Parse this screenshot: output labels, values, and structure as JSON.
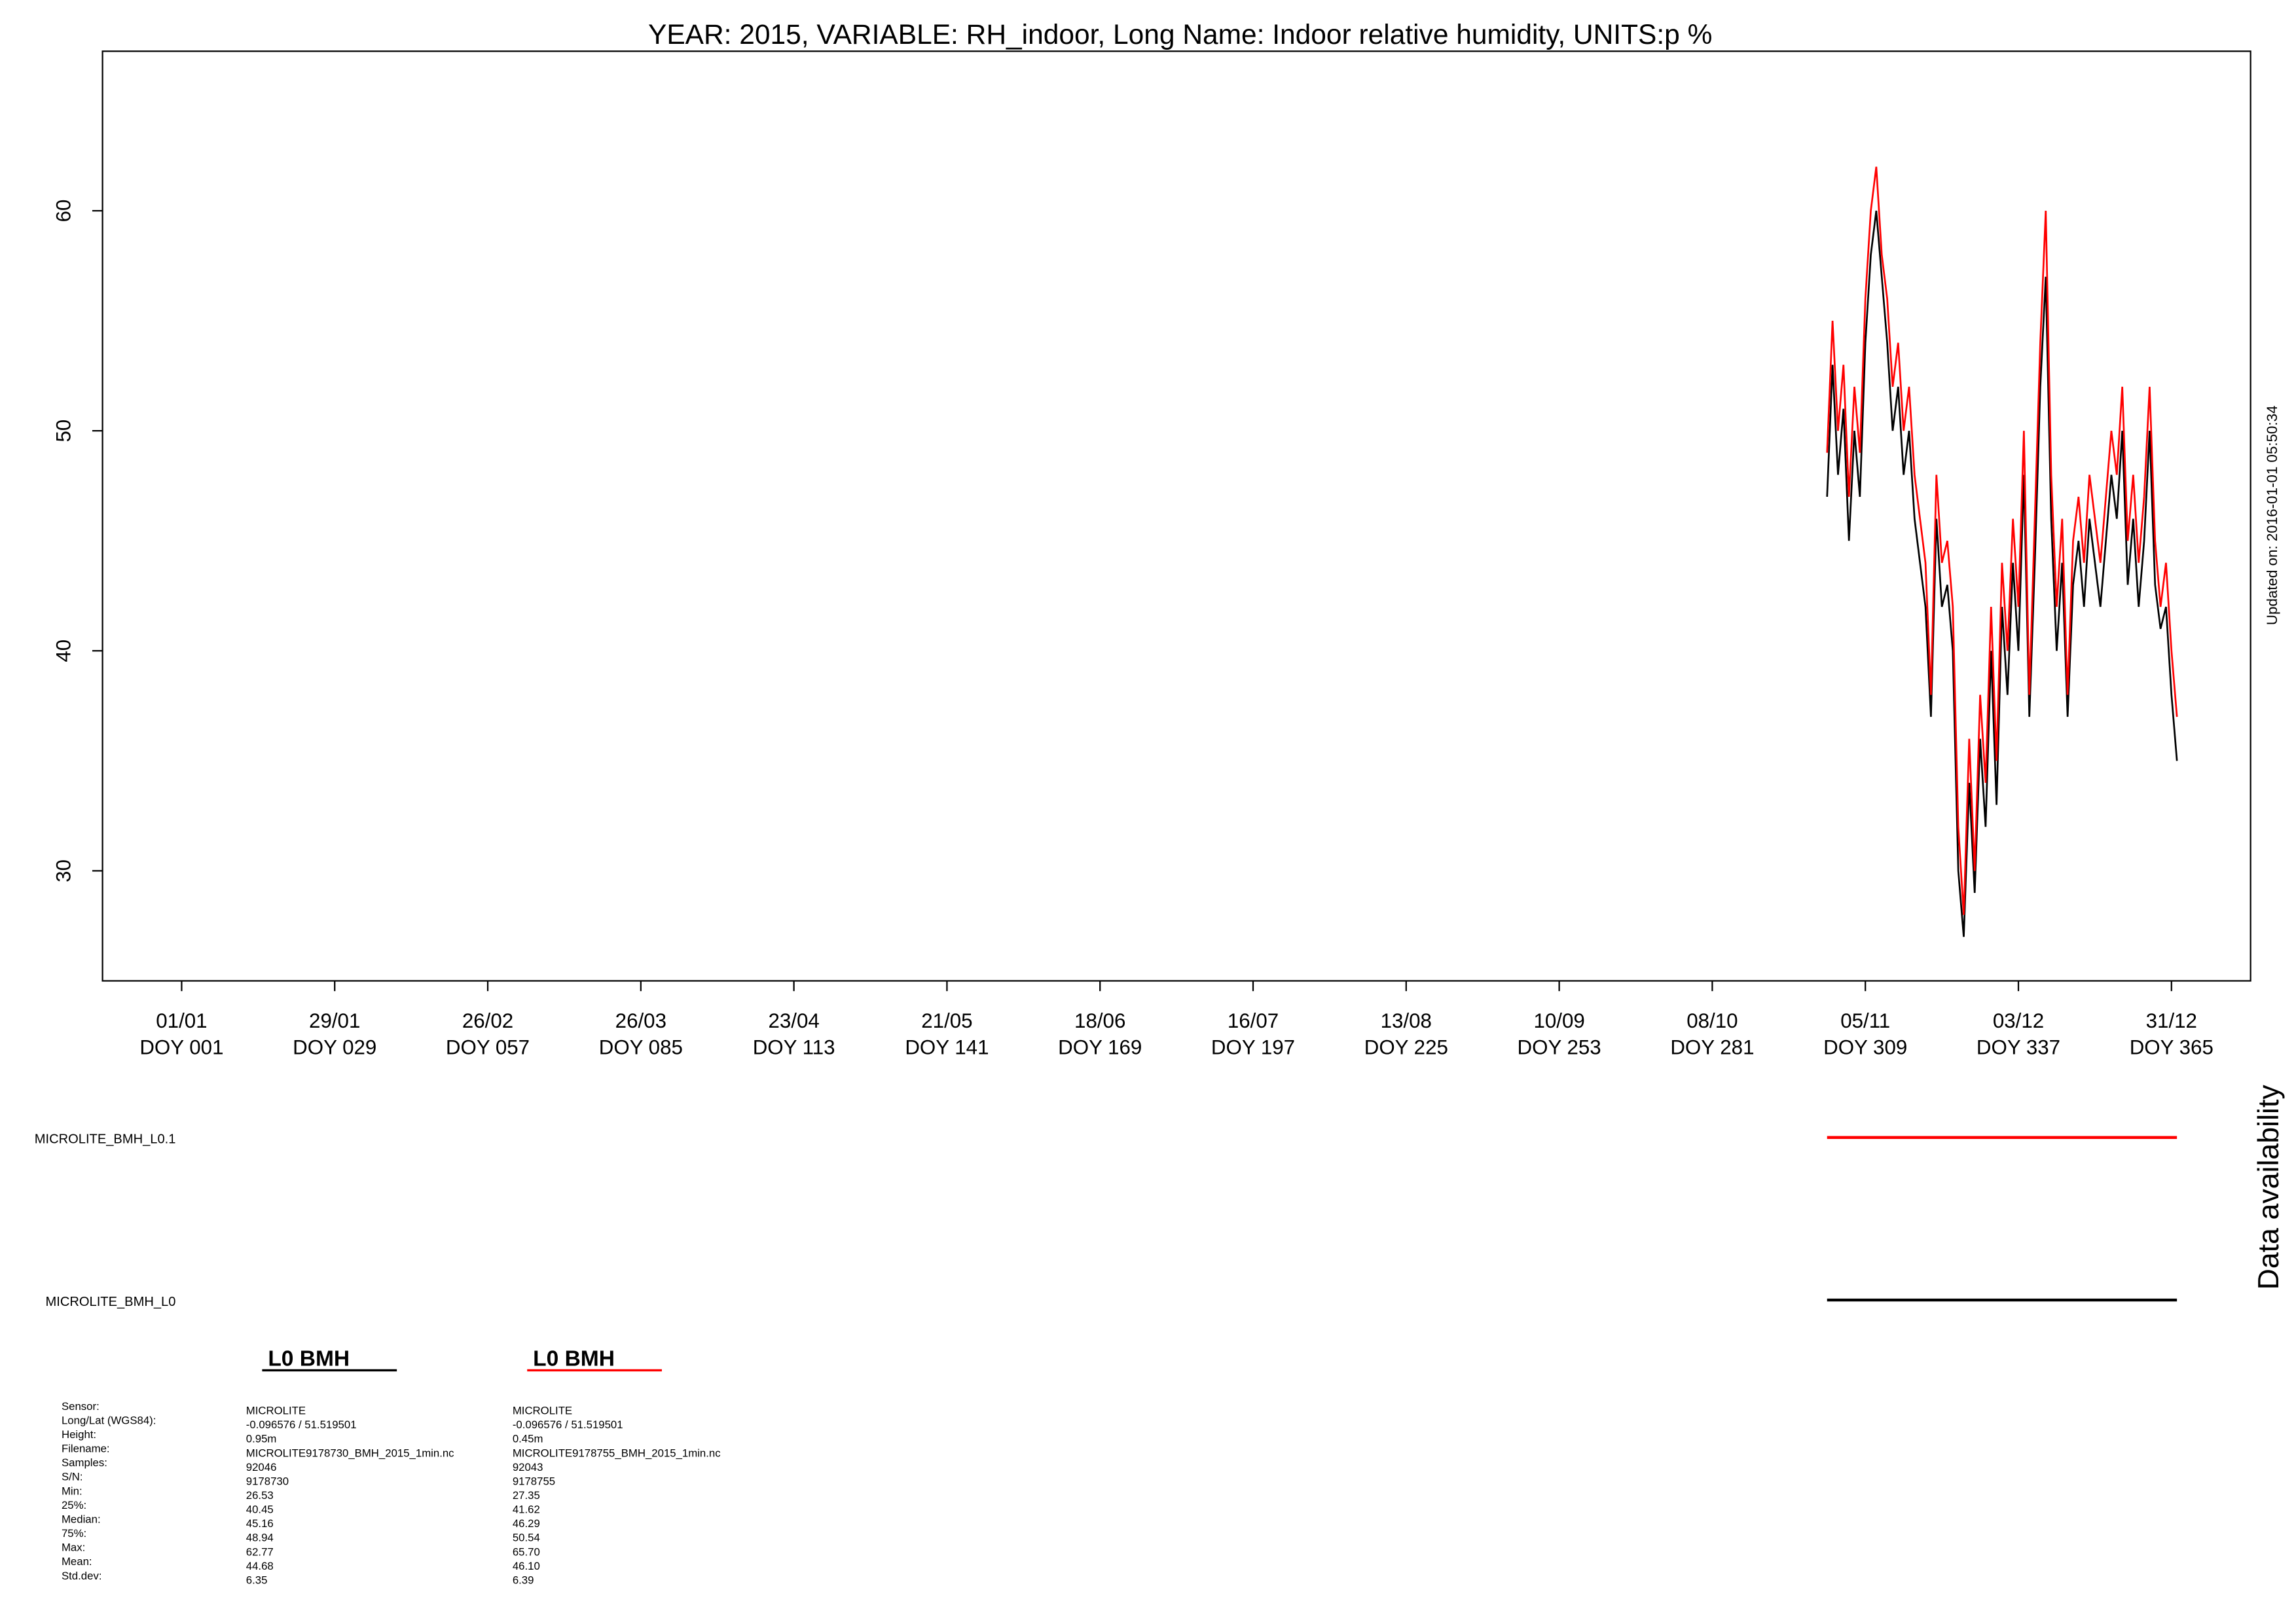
{
  "chart_data": {
    "type": "line",
    "title": "YEAR: 2015, VARIABLE: RH_indoor, Long Name: Indoor relative humidity, UNITS:p %",
    "updated": "Updated on: 2016-01-01 05:50:34",
    "availability_label": "Data availability",
    "xlim": [
      -13.47,
      379.47
    ],
    "ylim": [
      25.0,
      67.25
    ],
    "yticks": [
      30,
      40,
      50,
      60
    ],
    "xticks": [
      {
        "value": 1,
        "label": "01/01",
        "doy": "DOY 001"
      },
      {
        "value": 29,
        "label": "29/01",
        "doy": "DOY 029"
      },
      {
        "value": 57,
        "label": "26/02",
        "doy": "DOY 057"
      },
      {
        "value": 85,
        "label": "26/03",
        "doy": "DOY 085"
      },
      {
        "value": 113,
        "label": "23/04",
        "doy": "DOY 113"
      },
      {
        "value": 141,
        "label": "21/05",
        "doy": "DOY 141"
      },
      {
        "value": 169,
        "label": "18/06",
        "doy": "DOY 169"
      },
      {
        "value": 197,
        "label": "16/07",
        "doy": "DOY 197"
      },
      {
        "value": 225,
        "label": "13/08",
        "doy": "DOY 225"
      },
      {
        "value": 253,
        "label": "10/09",
        "doy": "DOY 253"
      },
      {
        "value": 281,
        "label": "08/10",
        "doy": "DOY 281"
      },
      {
        "value": 309,
        "label": "05/11",
        "doy": "DOY 309"
      },
      {
        "value": 337,
        "label": "03/12",
        "doy": "DOY 337"
      },
      {
        "value": 365,
        "label": "31/12",
        "doy": "DOY 365"
      }
    ],
    "x": [
      302,
      303,
      304,
      305,
      306,
      307,
      308,
      309,
      310,
      311,
      312,
      313,
      314,
      315,
      316,
      317,
      318,
      319,
      320,
      321,
      322,
      323,
      324,
      325,
      326,
      327,
      328,
      329,
      330,
      331,
      332,
      333,
      334,
      335,
      336,
      337,
      338,
      339,
      340,
      341,
      342,
      343,
      344,
      345,
      346,
      347,
      348,
      349,
      350,
      351,
      352,
      353,
      354,
      355,
      356,
      357,
      358,
      359,
      360,
      361,
      362,
      363,
      364,
      365,
      366
    ],
    "series": [
      {
        "name": "MICROLITE_BMH_L0",
        "color": "#000000",
        "available": [
          302,
          366
        ],
        "values": [
          47,
          53,
          48,
          51,
          45,
          50,
          47,
          54,
          58,
          60,
          57,
          54,
          50,
          52,
          48,
          50,
          46,
          44,
          42,
          37,
          46,
          42,
          43,
          40,
          30,
          27,
          34,
          29,
          36,
          32,
          40,
          33,
          42,
          38,
          44,
          40,
          48,
          37,
          44,
          52,
          57,
          46,
          40,
          44,
          37,
          43,
          45,
          42,
          46,
          44,
          42,
          45,
          48,
          46,
          50,
          43,
          46,
          42,
          45,
          50,
          43,
          41,
          42,
          38,
          35
        ]
      },
      {
        "name": "MICROLITE_BMH_L0.1",
        "color": "#ff0000",
        "available": [
          302,
          366
        ],
        "values": [
          49,
          55,
          50,
          53,
          47,
          52,
          49,
          56,
          60,
          62,
          58,
          56,
          52,
          54,
          50,
          52,
          48,
          46,
          44,
          38,
          48,
          44,
          45,
          42,
          32,
          28,
          36,
          30,
          38,
          34,
          42,
          35,
          44,
          40,
          46,
          42,
          50,
          38,
          46,
          54,
          60,
          48,
          42,
          46,
          38,
          45,
          47,
          44,
          48,
          46,
          44,
          47,
          50,
          48,
          52,
          45,
          48,
          44,
          47,
          52,
          45,
          42,
          44,
          40,
          37
        ]
      }
    ],
    "stats": {
      "row_labels": [
        "Sensor:",
        "Long/Lat (WGS84):",
        "Height:",
        "Filename:",
        "Samples:",
        "S/N:",
        "Min:",
        "25%:",
        "Median:",
        "75%:",
        "Max:",
        "Mean:",
        "Std.dev:"
      ],
      "columns": [
        {
          "header": "L0 BMH",
          "color": "#000000",
          "values": [
            "MICROLITE",
            "-0.096576 / 51.519501",
            "0.95m",
            "MICROLITE9178730_BMH_2015_1min.nc",
            "92046",
            "9178730",
            "26.53",
            "40.45",
            "45.16",
            "48.94",
            "62.77",
            "44.68",
            "6.35"
          ]
        },
        {
          "header": "L0 BMH",
          "color": "#ff0000",
          "values": [
            "MICROLITE",
            "-0.096576 / 51.519501",
            "0.45m",
            "MICROLITE9178755_BMH_2015_1min.nc",
            "92043",
            "9178755",
            "27.35",
            "41.62",
            "46.29",
            "50.54",
            "65.70",
            "46.10",
            "6.39"
          ]
        }
      ]
    }
  }
}
